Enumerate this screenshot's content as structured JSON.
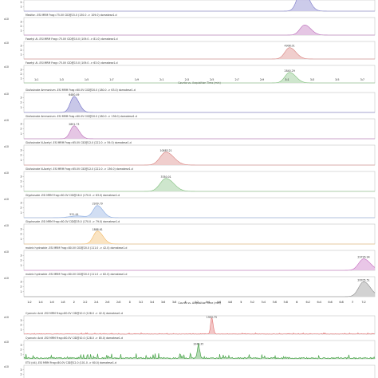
{
  "chart_data": {
    "type": "line",
    "title": "",
    "xlabel_group1": "Counts vs. Acquisition Time (min)",
    "xlabel_group2": "Counts vs. Acquisition Time (min)",
    "ylabel": "x10",
    "groups": [
      {
        "x_ticks": [
          1.1,
          1.3,
          1.5,
          1.7,
          1.9,
          2.1,
          2.3,
          2.5,
          2.7,
          2.9,
          3.1,
          3.3,
          3.5,
          3.7
        ],
        "xlim": [
          1.0,
          3.8
        ],
        "panels": [
          {
            "label": "",
            "color": "#7a78c8",
            "ylim": [
              0,
              4
            ],
            "y_ticks": [
              1,
              2,
              3
            ],
            "peaks": [
              {
                "rt": 3.22,
                "height": 5.2,
                "width": 0.05
              }
            ]
          },
          {
            "label": "Mesifon -ESI MRM Frag=75.0V CID@15.0 (130.0 -> 109.0) domatese1.d",
            "color": "#b96ab8",
            "ylim": [
              0,
              4
            ],
            "y_ticks": [
              1,
              2,
              3
            ],
            "peaks": [
              {
                "rt": 3.24,
                "height": 2.3,
                "width": 0.05
              }
            ]
          },
          {
            "label": "Fosetyl Al -ESI MRM Frag=75.0V CID@10.0 (109.0 -> 81.0) domatese1.d",
            "color": "#d77f7c",
            "ylim": [
              0,
              4
            ],
            "y_ticks": [
              1,
              2,
              3
            ],
            "peaks": [
              {
                "rt": 3.12,
                "height": 2.6,
                "width": 0.05
              }
            ],
            "labels": [
              {
                "rt": 3.12,
                "text": "4908.01"
              }
            ]
          },
          {
            "label": "Fosetyl Al -ESI MRM Frag=75.0V CID@15.0 (109.0 -> 63.0) domatese1.d",
            "color": "#7fbf7b",
            "ylim": [
              0,
              4
            ],
            "y_ticks": [
              1,
              2,
              3
            ],
            "peaks": [
              {
                "rt": 3.12,
                "height": 2.4,
                "width": 0.05
              }
            ],
            "labels": [
              {
                "rt": 3.12,
                "text": "2840.29"
              }
            ]
          }
        ]
      },
      {
        "x_ticks": [
          1.2,
          1.4,
          1.6,
          1.8,
          2.0,
          2.2,
          2.4,
          2.6,
          2.8,
          3.0,
          3.2,
          3.4,
          3.6,
          3.8,
          4.0,
          4.2,
          4.4,
          4.6,
          4.8,
          5.0,
          5.2,
          5.4,
          5.6,
          5.8,
          6.0,
          6.2,
          6.4,
          6.6,
          6.8,
          7.0,
          7.2
        ],
        "xlim": [
          1.1,
          7.4
        ],
        "panels": [
          {
            "label": "Glufosinate Ammonium -ESI MRM Frag=60.0V CID@20.0 (180.0 -> 63.0) domatese1.d",
            "color": "#6e6cc4",
            "ylim": [
              0,
              4
            ],
            "y_ticks": [
              1,
              2,
              3
            ],
            "peaks": [
              {
                "rt": 2.0,
                "height": 3.2,
                "width": 0.09
              }
            ],
            "labels": [
              {
                "rt": 2.0,
                "text": "6480.49"
              }
            ]
          },
          {
            "label": "Glufosinate Ammonium -ESI MRM Frag=60.0V CID@20.0 (180.0 -> 136.0) domatese1.d",
            "color": "#b96ab8",
            "ylim": [
              0,
              4
            ],
            "y_ticks": [
              1,
              2,
              3
            ],
            "peaks": [
              {
                "rt": 2.0,
                "height": 2.6,
                "width": 0.09
              }
            ],
            "labels": [
              {
                "rt": 2.0,
                "text": "2891.73"
              }
            ]
          },
          {
            "label": "Glufosinate N-Acetyl -ESI MRM Frag=65.0V CID@12.0 (222.0 -> 59.0) domatese1.d",
            "color": "#d77f7c",
            "ylim": [
              0,
              4
            ],
            "y_ticks": [
              1,
              2,
              3
            ],
            "peaks": [
              {
                "rt": 3.65,
                "height": 2.6,
                "width": 0.14
              }
            ],
            "labels": [
              {
                "rt": 3.65,
                "text": "10883.21"
              }
            ]
          },
          {
            "label": "Glufosinate N-Acetyl -ESI MRM Frag=65.0V CID@12.0 (222.0 -> 136.0) domatese1.d",
            "color": "#7fbf7b",
            "ylim": [
              0,
              4
            ],
            "y_ticks": [
              1,
              2,
              3
            ],
            "peaks": [
              {
                "rt": 3.65,
                "height": 2.6,
                "width": 0.14
              }
            ],
            "labels": [
              {
                "rt": 3.65,
                "text": "3780.01"
              }
            ]
          },
          {
            "label": "Glyphosate -ESI MRM Frag=60.0V CID@16.0 (170.0 -> 63.0) domatese1.d",
            "color": "#86a8e0",
            "ylim": [
              0,
              4
            ],
            "y_ticks": [
              1,
              2,
              3
            ],
            "peaks": [
              {
                "rt": 2.42,
                "height": 2.4,
                "width": 0.1
              },
              {
                "rt": 2.05,
                "height": 0.35,
                "width": 0.18
              }
            ],
            "labels": [
              {
                "rt": 2.42,
                "text": "2939.79"
              },
              {
                "rt": 2.0,
                "text": "531.44"
              }
            ]
          },
          {
            "label": "Glyphosate -ESI MRM Frag=60.0V CID@25.0 (170.0 -> 79.0) domatese1.d",
            "color": "#f2b864",
            "ylim": [
              0,
              4
            ],
            "y_ticks": [
              1,
              2,
              3
            ],
            "peaks": [
              {
                "rt": 2.42,
                "height": 2.6,
                "width": 0.1
              }
            ],
            "labels": [
              {
                "rt": 2.42,
                "text": "1888.61"
              }
            ]
          },
          {
            "label": "maleic hydrazide -ESI MRM Frag=80.0V CID@20.0 (111.0 -> 42.0) domatese1.d",
            "color": "#c66ac0",
            "ylim": [
              0,
              4
            ],
            "y_ticks": [
              1,
              2,
              3
            ],
            "peaks": [
              {
                "rt": 7.2,
                "height": 2.3,
                "width": 0.12
              }
            ],
            "labels": [
              {
                "rt": 7.2,
                "text": "29726.94"
              }
            ]
          },
          {
            "label": "maleic hydrazide -ESI MRM Frag=80.0V CID@20.0 (111.0 -> 82.0) domatese1.d",
            "color": "#8a8a8a",
            "ylim": [
              0,
              4
            ],
            "y_ticks": [
              1,
              2,
              3
            ],
            "peaks": [
              {
                "rt": 7.2,
                "height": 3.0,
                "width": 0.12
              }
            ],
            "labels": [
              {
                "rt": 7.2,
                "text": "26705.51"
              }
            ]
          }
        ]
      },
      {
        "x_ticks": [],
        "xlim": [
          0,
          1
        ],
        "panels": [
          {
            "label": "Cyanuric Acid -ESI MRM Frag=80.0V CID@10.0 (128.0 -> 42.0) domatese1.d",
            "color": "#e06d6d",
            "ylim": [
              0,
              4
            ],
            "y_ticks": [
              1,
              2,
              3
            ],
            "peaks": [
              {
                "rt": 0.535,
                "height": 3.6,
                "width": 0.004
              }
            ],
            "noise": 0.12,
            "labels": [
              {
                "rt": 0.535,
                "text": "1993.75"
              }
            ]
          },
          {
            "label": "Cyanuric Acid -ESI MRM Frag=80.0V CID@10.0 (128.0 -> 85.0) domatese1.d",
            "color": "#3e9e3e",
            "ylim": [
              0,
              4
            ],
            "y_ticks": [
              1,
              2,
              3
            ],
            "peaks": [
              {
                "rt": 0.497,
                "height": 2.9,
                "width": 0.004
              }
            ],
            "noise": 0.55,
            "labels": [
              {
                "rt": 0.497,
                "text": "1040.35"
              }
            ]
          },
          {
            "label": "ETU (d4) -ESI MRM Frag=80.0V CID@12.0 (101.0 -> 60.0) domatese1.d",
            "color": "#6f8ed0",
            "ylim": [
              0,
              4
            ],
            "y_ticks": [
              1,
              2,
              3
            ],
            "peaks": [
              {
                "rt": 0.18,
                "height": 0.4,
                "width": 0.01
              }
            ],
            "labels": [
              {
                "rt": 0.18,
                "text": "3030.12"
              }
            ]
          }
        ]
      }
    ]
  }
}
